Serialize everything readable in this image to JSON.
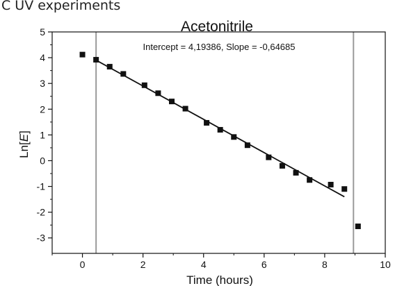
{
  "header": {
    "cut_title": "C UV experiments"
  },
  "chart_data": {
    "type": "scatter",
    "title": "Acetonitrile",
    "xlabel": "Time (hours)",
    "ylabel_prefix": "Ln[",
    "ylabel_var": "E",
    "ylabel_suffix": "]",
    "annotation": "Intercept = 4,19386, Slope = -0,64685",
    "xlim": [
      -1,
      10
    ],
    "ylim": [
      -3.6,
      5
    ],
    "x_ticks": [
      0,
      2,
      4,
      6,
      8,
      10
    ],
    "y_ticks": [
      -3,
      -2,
      -1,
      0,
      1,
      2,
      3,
      4,
      5
    ],
    "x_tick_labels": [
      "0",
      "2",
      "4",
      "6",
      "8",
      "10"
    ],
    "y_tick_labels": [
      "-3",
      "-2",
      "-1",
      "0",
      "1",
      "2",
      "3",
      "4",
      "5"
    ],
    "grid": false,
    "series": [
      {
        "x": [
          0.0,
          0.45,
          0.9,
          1.35,
          2.05,
          2.5,
          2.95,
          3.4,
          4.1,
          4.55,
          5.0,
          5.45,
          6.15,
          6.6,
          7.05,
          7.5,
          8.2,
          8.65,
          9.1
        ],
        "y": [
          4.12,
          3.92,
          3.65,
          3.37,
          2.93,
          2.62,
          2.3,
          2.02,
          1.47,
          1.2,
          0.92,
          0.6,
          0.13,
          -0.2,
          -0.47,
          -0.75,
          -0.93,
          -1.1,
          -2.55
        ]
      }
    ],
    "fit_line": {
      "intercept": 4.19386,
      "slope": -0.64685,
      "x_range": [
        0.45,
        8.65
      ]
    },
    "vertical_lines": [
      0.45,
      8.95
    ],
    "colors": {
      "points": "#111111",
      "fit": "#111111",
      "vlines": "#9a9a9a",
      "axes": "#111111"
    }
  }
}
